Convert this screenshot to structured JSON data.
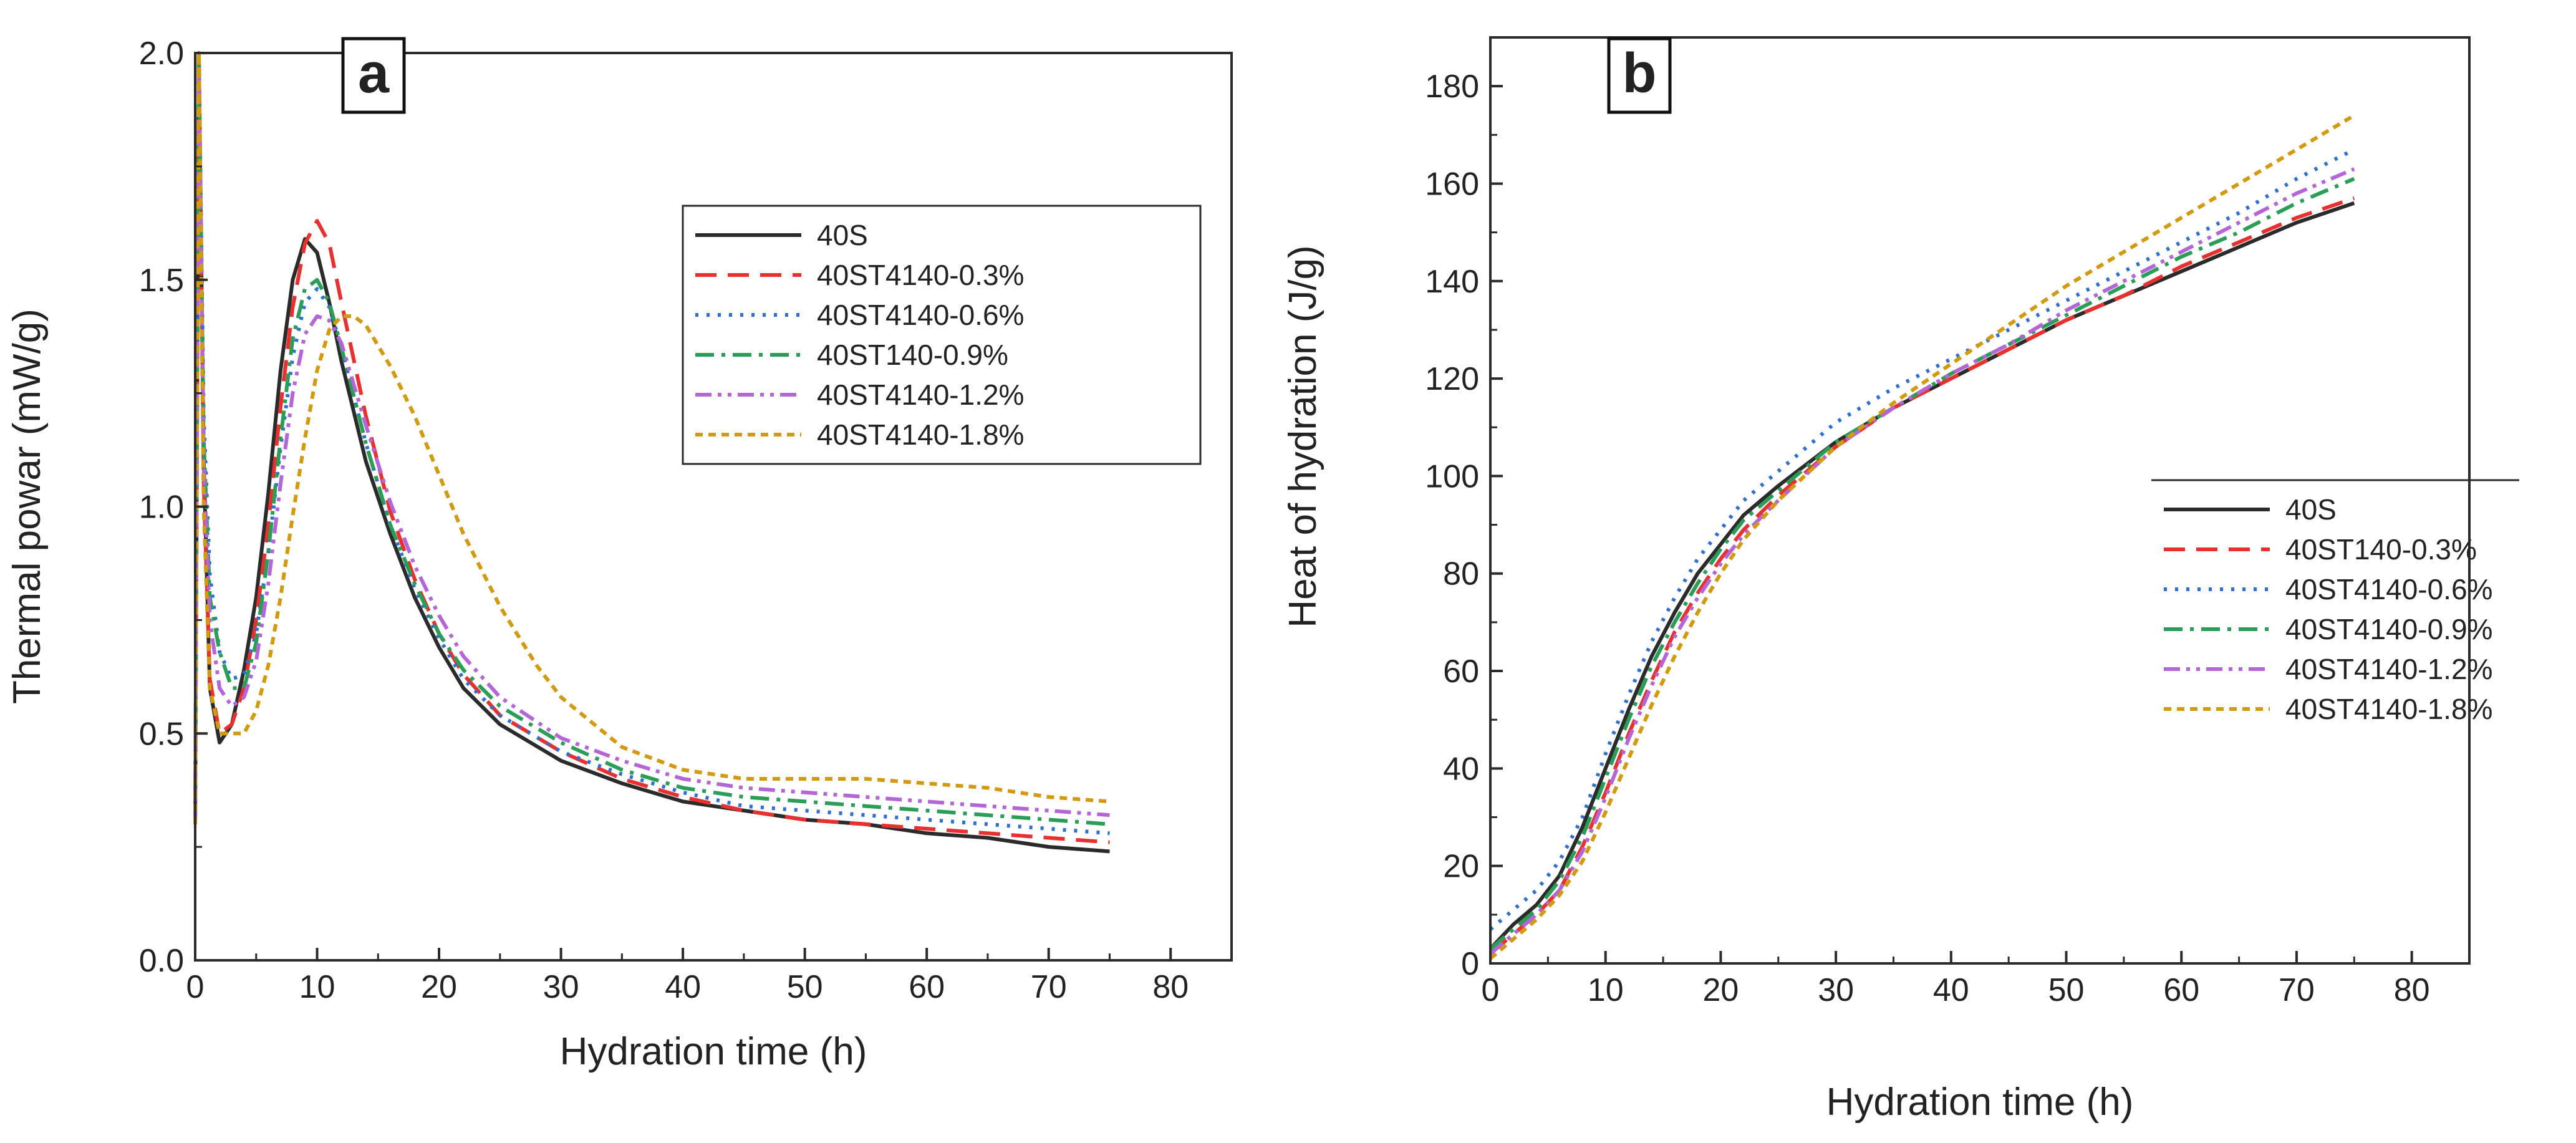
{
  "chart_data": [
    {
      "type": "line",
      "panel_label": "a",
      "xlabel": "Hydration time (h)",
      "ylabel": "Thermal powar (mW/g)",
      "xlim": [
        0,
        85
      ],
      "ylim": [
        0,
        2.0
      ],
      "xticks": [
        0,
        10,
        20,
        30,
        40,
        50,
        60,
        70,
        80
      ],
      "yticks": [
        0.0,
        0.5,
        1.0,
        1.5,
        2.0
      ],
      "ytick_labels": [
        "0.0",
        "0.5",
        "1.0",
        "1.5",
        "2.0"
      ],
      "grid": false,
      "legend_position": "top-right",
      "series": [
        {
          "name": "40S",
          "color": "#2b2b2b",
          "dash": "solid",
          "x": [
            0,
            0.3,
            0.7,
            1.2,
            2,
            3,
            4,
            5,
            6,
            7,
            8,
            9,
            10,
            11,
            12,
            14,
            16,
            18,
            20,
            22,
            25,
            30,
            35,
            40,
            45,
            50,
            55,
            60,
            65,
            70,
            75
          ],
          "y": [
            0.3,
            2.0,
            1.1,
            0.6,
            0.48,
            0.52,
            0.64,
            0.8,
            1.03,
            1.3,
            1.5,
            1.59,
            1.56,
            1.45,
            1.32,
            1.1,
            0.94,
            0.8,
            0.69,
            0.6,
            0.52,
            0.44,
            0.39,
            0.35,
            0.33,
            0.31,
            0.3,
            0.28,
            0.27,
            0.25,
            0.24
          ]
        },
        {
          "name": "40ST4140-0.3%",
          "color": "#e8302e",
          "dash": "dashed",
          "x": [
            0,
            0.3,
            0.7,
            1.2,
            2,
            3,
            4,
            5,
            6,
            7,
            8,
            9,
            10,
            11,
            12,
            14,
            16,
            18,
            20,
            22,
            25,
            30,
            35,
            40,
            45,
            50,
            55,
            60,
            65,
            70,
            75
          ],
          "y": [
            0.3,
            2.0,
            1.05,
            0.62,
            0.5,
            0.52,
            0.6,
            0.75,
            0.96,
            1.22,
            1.44,
            1.58,
            1.63,
            1.58,
            1.45,
            1.2,
            0.99,
            0.84,
            0.72,
            0.63,
            0.54,
            0.46,
            0.4,
            0.36,
            0.33,
            0.31,
            0.3,
            0.29,
            0.28,
            0.27,
            0.26
          ]
        },
        {
          "name": "40ST4140-0.6%",
          "color": "#2f6fd0",
          "dash": "dotted",
          "x": [
            0,
            0.3,
            0.7,
            1.2,
            2,
            3,
            4,
            5,
            6,
            7,
            8,
            9,
            10,
            11,
            12,
            14,
            16,
            18,
            20,
            22,
            25,
            30,
            35,
            40,
            45,
            50,
            55,
            60,
            65,
            70,
            75
          ],
          "y": [
            0.3,
            2.0,
            1.2,
            0.85,
            0.68,
            0.62,
            0.63,
            0.72,
            0.9,
            1.13,
            1.33,
            1.45,
            1.48,
            1.44,
            1.35,
            1.14,
            0.96,
            0.82,
            0.71,
            0.62,
            0.54,
            0.46,
            0.41,
            0.37,
            0.34,
            0.33,
            0.32,
            0.31,
            0.3,
            0.29,
            0.28
          ]
        },
        {
          "name": "40ST140-0.9%",
          "color": "#2a9d57",
          "dash": "dashdot",
          "x": [
            0,
            0.3,
            0.7,
            1.2,
            2,
            3,
            4,
            5,
            6,
            7,
            8,
            9,
            10,
            11,
            12,
            14,
            16,
            18,
            20,
            22,
            25,
            30,
            35,
            40,
            45,
            50,
            55,
            60,
            65,
            70,
            75
          ],
          "y": [
            0.3,
            2.0,
            1.15,
            0.8,
            0.68,
            0.6,
            0.6,
            0.7,
            0.9,
            1.15,
            1.37,
            1.48,
            1.5,
            1.45,
            1.35,
            1.14,
            0.96,
            0.83,
            0.72,
            0.64,
            0.56,
            0.48,
            0.42,
            0.38,
            0.36,
            0.35,
            0.34,
            0.33,
            0.32,
            0.31,
            0.3
          ]
        },
        {
          "name": "40ST4140-1.2%",
          "color": "#b566d6",
          "dash": "dashdotdot",
          "x": [
            0,
            0.3,
            0.7,
            1.2,
            2,
            3,
            4,
            5,
            6,
            7,
            8,
            9,
            10,
            11,
            12,
            14,
            16,
            18,
            20,
            22,
            25,
            30,
            35,
            40,
            45,
            50,
            55,
            60,
            65,
            70,
            75
          ],
          "y": [
            0.3,
            2.0,
            1.1,
            0.75,
            0.6,
            0.56,
            0.58,
            0.66,
            0.83,
            1.05,
            1.25,
            1.38,
            1.42,
            1.41,
            1.36,
            1.18,
            1.01,
            0.87,
            0.76,
            0.67,
            0.58,
            0.49,
            0.44,
            0.4,
            0.38,
            0.37,
            0.36,
            0.35,
            0.34,
            0.33,
            0.32
          ]
        },
        {
          "name": "40ST4140-1.8%",
          "color": "#d29a11",
          "dash": "shortdash",
          "x": [
            0,
            0.3,
            0.7,
            1.2,
            2,
            3,
            4,
            5,
            6,
            7,
            8,
            9,
            10,
            11,
            12,
            13,
            14,
            16,
            18,
            20,
            22,
            25,
            28,
            30,
            35,
            40,
            45,
            50,
            55,
            60,
            65,
            70,
            75
          ],
          "y": [
            0.3,
            2.0,
            1.0,
            0.6,
            0.5,
            0.5,
            0.5,
            0.55,
            0.65,
            0.8,
            0.98,
            1.15,
            1.3,
            1.39,
            1.42,
            1.42,
            1.4,
            1.31,
            1.2,
            1.07,
            0.94,
            0.78,
            0.65,
            0.58,
            0.47,
            0.42,
            0.4,
            0.4,
            0.4,
            0.39,
            0.38,
            0.36,
            0.35
          ]
        }
      ]
    },
    {
      "type": "line",
      "panel_label": "b",
      "xlabel": "Hydration time (h)",
      "ylabel": "Heat of hydration (J/g)",
      "xlim": [
        0,
        85
      ],
      "ylim": [
        0,
        190
      ],
      "xticks": [
        0,
        10,
        20,
        30,
        40,
        50,
        60,
        70,
        80
      ],
      "yticks": [
        0,
        20,
        40,
        60,
        80,
        100,
        120,
        140,
        160,
        180
      ],
      "ytick_labels": [
        "0",
        "20",
        "40",
        "60",
        "80",
        "100",
        "120",
        "140",
        "160",
        "180"
      ],
      "grid": false,
      "legend_position": "center-right",
      "series": [
        {
          "name": "40S",
          "color": "#2b2b2b",
          "dash": "solid",
          "x": [
            0,
            2,
            4,
            6,
            8,
            10,
            12,
            14,
            16,
            18,
            20,
            22,
            25,
            30,
            35,
            40,
            45,
            50,
            55,
            60,
            65,
            70,
            75
          ],
          "y": [
            3,
            8,
            12,
            18,
            28,
            40,
            52,
            63,
            72,
            80,
            86,
            92,
            98,
            107,
            114,
            120,
            126,
            132,
            137,
            142,
            147,
            152,
            156
          ]
        },
        {
          "name": "40ST140-0.3%",
          "color": "#e8302e",
          "dash": "dashed",
          "x": [
            0,
            2,
            4,
            6,
            8,
            10,
            12,
            14,
            16,
            18,
            20,
            22,
            25,
            30,
            35,
            40,
            45,
            50,
            55,
            60,
            65,
            70,
            75
          ],
          "y": [
            2,
            6,
            10,
            15,
            24,
            35,
            47,
            58,
            68,
            76,
            83,
            89,
            96,
            106,
            114,
            120,
            126,
            132,
            137,
            143,
            148,
            153,
            157
          ]
        },
        {
          "name": "40ST4140-0.6%",
          "color": "#2f6fd0",
          "dash": "dotted",
          "x": [
            0,
            2,
            4,
            6,
            8,
            10,
            12,
            14,
            16,
            18,
            20,
            22,
            25,
            30,
            35,
            40,
            45,
            50,
            55,
            60,
            65,
            70,
            75
          ],
          "y": [
            7,
            11,
            15,
            21,
            30,
            43,
            55,
            66,
            75,
            83,
            89,
            95,
            101,
            111,
            118,
            124,
            130,
            136,
            142,
            148,
            154,
            161,
            167
          ]
        },
        {
          "name": "40ST4140-0.9%",
          "color": "#2a9d57",
          "dash": "dashdot",
          "x": [
            0,
            2,
            4,
            6,
            8,
            10,
            12,
            14,
            16,
            18,
            20,
            22,
            25,
            30,
            35,
            40,
            45,
            50,
            55,
            60,
            65,
            70,
            75
          ],
          "y": [
            3,
            7,
            11,
            17,
            26,
            38,
            50,
            61,
            70,
            78,
            85,
            91,
            97,
            107,
            114,
            121,
            127,
            133,
            139,
            145,
            150,
            156,
            161
          ]
        },
        {
          "name": "40ST4140-1.2%",
          "color": "#b566d6",
          "dash": "dashdotdot",
          "x": [
            0,
            2,
            4,
            6,
            8,
            10,
            12,
            14,
            16,
            18,
            20,
            22,
            25,
            30,
            35,
            40,
            45,
            50,
            55,
            60,
            65,
            70,
            75
          ],
          "y": [
            2,
            6,
            10,
            15,
            23,
            34,
            46,
            57,
            67,
            75,
            82,
            88,
            95,
            106,
            114,
            121,
            127,
            134,
            140,
            146,
            152,
            158,
            163
          ]
        },
        {
          "name": "40ST4140-1.8%",
          "color": "#d29a11",
          "dash": "shortdash",
          "x": [
            0,
            2,
            4,
            6,
            8,
            10,
            12,
            14,
            16,
            18,
            20,
            22,
            25,
            30,
            35,
            40,
            45,
            50,
            55,
            60,
            65,
            70,
            75
          ],
          "y": [
            1,
            5,
            9,
            14,
            21,
            31,
            42,
            53,
            63,
            72,
            80,
            87,
            95,
            106,
            115,
            123,
            131,
            139,
            146,
            153,
            160,
            167,
            174
          ]
        }
      ]
    }
  ]
}
